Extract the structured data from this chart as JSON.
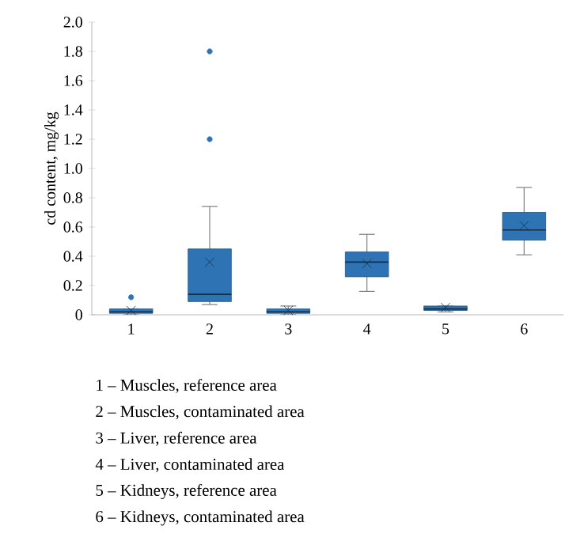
{
  "chart_data": {
    "type": "box",
    "ylabel": "cd content, mg/kg",
    "categories": [
      "1",
      "2",
      "3",
      "4",
      "5",
      "6"
    ],
    "boxes": [
      {
        "low": 0.0,
        "q1": 0.01,
        "median": 0.02,
        "q3": 0.04,
        "high": 0.04,
        "mean": 0.03,
        "outliers": [
          0.12
        ]
      },
      {
        "low": 0.07,
        "q1": 0.09,
        "median": 0.14,
        "q3": 0.45,
        "high": 0.74,
        "mean": 0.36,
        "outliers": [
          1.2,
          1.8
        ]
      },
      {
        "low": 0.0,
        "q1": 0.01,
        "median": 0.02,
        "q3": 0.04,
        "high": 0.06,
        "mean": 0.03
      },
      {
        "low": 0.16,
        "q1": 0.26,
        "median": 0.36,
        "q3": 0.43,
        "high": 0.55,
        "mean": 0.35
      },
      {
        "low": 0.02,
        "q1": 0.03,
        "median": 0.04,
        "q3": 0.06,
        "high": 0.06,
        "mean": 0.05
      },
      {
        "low": 0.41,
        "q1": 0.51,
        "median": 0.58,
        "q3": 0.7,
        "high": 0.87,
        "mean": 0.61
      }
    ],
    "color": "#2e74b5",
    "ylim": [
      0,
      2.0
    ],
    "yticks": [
      0,
      0.2,
      0.4,
      0.6,
      0.8,
      {
        "value": 1.0,
        "label": "1.0"
      },
      1.2,
      1.4,
      1.6,
      1.8,
      {
        "value": 2.0,
        "label": "2.0"
      }
    ],
    "grid": false,
    "annotations": [
      "1 – Muscles, reference area",
      "2 – Muscles, contaminated area",
      "3 – Liver, reference area",
      "4 – Liver, contaminated area",
      "5 – Kidneys, reference area",
      "6 – Kidneys, contaminated area"
    ]
  }
}
